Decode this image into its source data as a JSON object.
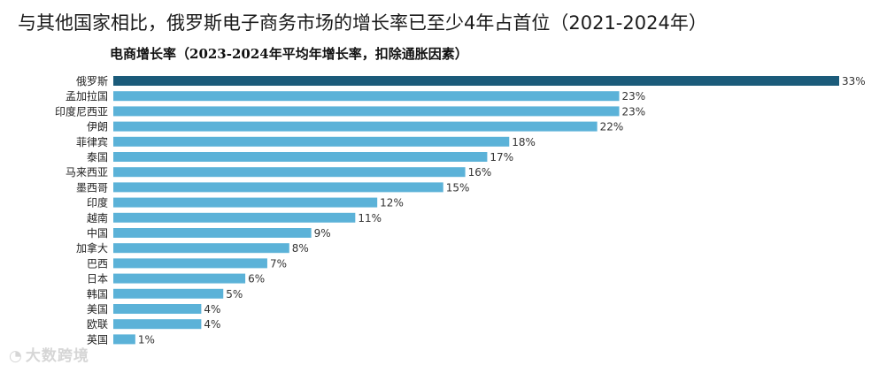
{
  "headline": "与其他国家相比，俄罗斯电子商务市场的增长率已至少4年占首位（2021-2024年）",
  "watermark": "大数跨境",
  "chart_data": {
    "type": "bar",
    "orientation": "horizontal",
    "title": "电商增长率（2023-2024年平均年增长率，扣除通胀因素）",
    "categories": [
      "俄罗斯",
      "孟加拉国",
      "印度尼西亚",
      "伊朗",
      "菲律宾",
      "泰国",
      "马来西亚",
      "墨西哥",
      "印度",
      "越南",
      "中国",
      "加拿大",
      "巴西",
      "日本",
      "韩国",
      "美国",
      "欧联",
      "英国"
    ],
    "values": [
      33,
      23,
      23,
      22,
      18,
      17,
      16,
      15,
      12,
      11,
      9,
      8,
      7,
      6,
      5,
      4,
      4,
      1
    ],
    "value_suffix": "%",
    "highlight_index": 0,
    "colors": {
      "highlight": "#1b5b7a",
      "default": "#5bb2d8"
    },
    "grid": false,
    "legend": "none"
  }
}
